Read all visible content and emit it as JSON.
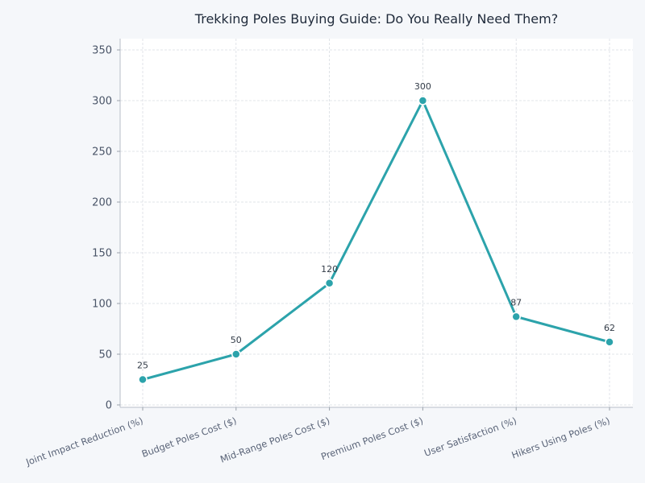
{
  "chart_data": {
    "type": "line",
    "title": "Trekking Poles Buying Guide: Do You Really Need Them?",
    "xlabel": "",
    "ylabel": "",
    "categories": [
      "Joint Impact Reduction (%)",
      "Budget Poles Cost ($)",
      "Mid-Range Poles Cost ($)",
      "Premium Poles Cost ($)",
      "User Satisfaction (%)",
      "Hikers Using Poles (%)"
    ],
    "series": [
      {
        "name": "Value",
        "values": [
          25,
          50,
          120,
          300,
          87,
          62
        ],
        "color": "#2ca3ab"
      }
    ],
    "data_labels": [
      "25",
      "50",
      "120",
      "300",
      "87",
      "62"
    ],
    "yticks": [
      0,
      50,
      100,
      150,
      200,
      250,
      300,
      350
    ],
    "ylim": [
      -3,
      360
    ],
    "grid": true,
    "legend": null,
    "x_tick_rotation": -20
  },
  "colors": {
    "background": "#f5f7fa",
    "plot_background": "#ffffff",
    "line": "#2ca3ab",
    "grid": "#d9dde3",
    "title": "#1f2a3a"
  }
}
